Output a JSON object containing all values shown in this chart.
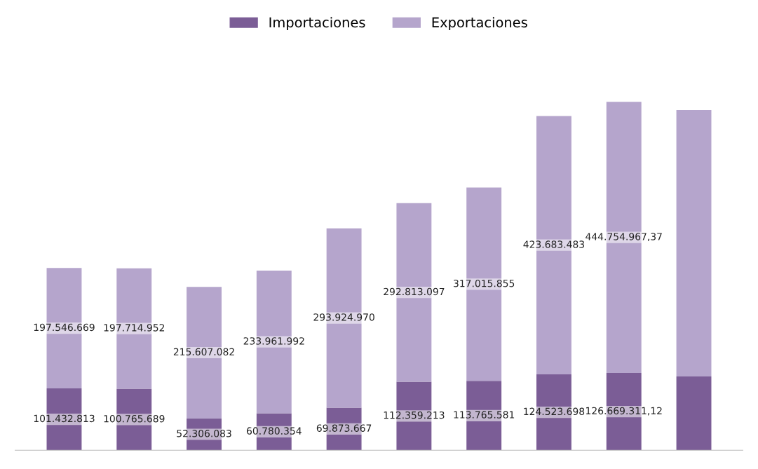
{
  "chart_data": {
    "type": "bar",
    "stacked": true,
    "legend": "top",
    "categories": [
      null,
      null,
      null,
      null,
      null,
      null,
      null,
      null,
      null,
      null
    ],
    "series": [
      {
        "name": "Importaciones",
        "color": "#7b5d96",
        "values": [
          101432813,
          100765689,
          52306083,
          60780354,
          69873667,
          112359213,
          113765581,
          124523698,
          126669311.12,
          121109000
        ],
        "value_labels": [
          "101.432.813",
          "100.765.689",
          "52.306.083",
          "60.780.354",
          "69.873.667",
          "112.359.213",
          "113.765.581",
          "124.523.698",
          "126.669.311,12",
          null
        ]
      },
      {
        "name": "Exportaciones",
        "color": "#b5a5cc",
        "values": [
          197546669,
          197714952,
          215607082,
          233961992,
          293924970,
          292813097,
          317015855,
          423683483,
          444754967.37,
          436707000
        ],
        "value_labels": [
          "197.546.669",
          "197.714.952",
          "215.607.082",
          "233.961.992",
          "293.924.970",
          "292.813.097",
          "317.015.855",
          "423.683.483",
          "444.754.967,37",
          null
        ]
      }
    ]
  }
}
